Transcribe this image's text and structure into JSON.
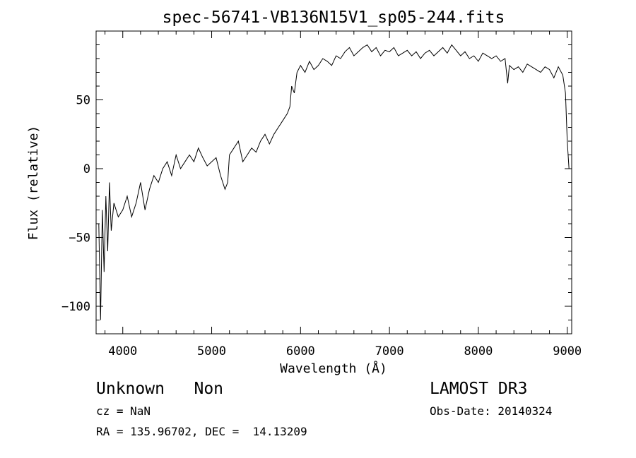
{
  "chart_data": {
    "type": "line",
    "title": "spec-56741-VB136N15V1_sp05-244.fits",
    "xlabel": "Wavelength (Å)",
    "ylabel": "Flux (relative)",
    "xlim": [
      3700,
      9050
    ],
    "ylim": [
      -120,
      100
    ],
    "xticks": [
      4000,
      5000,
      6000,
      7000,
      8000,
      9000
    ],
    "yticks": [
      -100,
      -50,
      0,
      50
    ],
    "grid": false,
    "series": [
      {
        "x": [
          3730,
          3750,
          3770,
          3790,
          3810,
          3830,
          3850,
          3870,
          3900,
          3950,
          4000,
          4050,
          4100,
          4150,
          4200,
          4250,
          4300,
          4350,
          4400,
          4450,
          4500,
          4550,
          4600,
          4650,
          4700,
          4750,
          4800,
          4850,
          4900,
          4950,
          5000,
          5050,
          5100,
          5150,
          5180,
          5200,
          5250,
          5300,
          5350,
          5400,
          5450,
          5500,
          5550,
          5600,
          5650,
          5700,
          5750,
          5800,
          5850,
          5880,
          5900,
          5930,
          5960,
          6000,
          6050,
          6100,
          6150,
          6200,
          6250,
          6300,
          6350,
          6400,
          6450,
          6500,
          6550,
          6600,
          6650,
          6700,
          6750,
          6800,
          6850,
          6900,
          6950,
          7000,
          7050,
          7100,
          7150,
          7200,
          7250,
          7300,
          7350,
          7400,
          7450,
          7500,
          7550,
          7600,
          7650,
          7700,
          7750,
          7800,
          7850,
          7900,
          7950,
          8000,
          8050,
          8100,
          8150,
          8200,
          8250,
          8300,
          8330,
          8350,
          8400,
          8450,
          8500,
          8550,
          8600,
          8650,
          8700,
          8750,
          8800,
          8850,
          8900,
          8950,
          8980,
          9000,
          9020
        ],
        "y": [
          -40,
          -110,
          -30,
          -75,
          -20,
          -60,
          -10,
          -45,
          -25,
          -35,
          -30,
          -20,
          -35,
          -25,
          -10,
          -30,
          -15,
          -5,
          -10,
          0,
          5,
          -5,
          10,
          0,
          5,
          10,
          5,
          15,
          8,
          2,
          5,
          8,
          -5,
          -15,
          -10,
          10,
          15,
          20,
          5,
          10,
          15,
          12,
          20,
          25,
          18,
          25,
          30,
          35,
          40,
          45,
          60,
          55,
          70,
          75,
          70,
          78,
          72,
          75,
          80,
          78,
          75,
          82,
          80,
          85,
          88,
          82,
          85,
          88,
          90,
          85,
          88,
          82,
          86,
          85,
          88,
          82,
          84,
          86,
          82,
          85,
          80,
          84,
          86,
          82,
          85,
          88,
          84,
          90,
          86,
          82,
          85,
          80,
          82,
          78,
          84,
          82,
          80,
          82,
          78,
          80,
          62,
          75,
          72,
          74,
          70,
          76,
          74,
          72,
          70,
          74,
          72,
          66,
          74,
          68,
          55,
          20,
          0
        ]
      }
    ]
  },
  "footer": {
    "object_class": "Unknown   Non",
    "cz": "cz = NaN",
    "coords": "RA = 135.96702, DEC =  14.13209",
    "survey": "LAMOST DR3",
    "obs_date": "Obs-Date: 20140324"
  }
}
